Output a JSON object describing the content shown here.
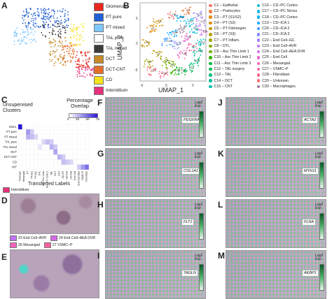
{
  "panel_labels": [
    "A",
    "B",
    "C",
    "D",
    "E",
    "F",
    "G",
    "H",
    "I",
    "J",
    "K",
    "L",
    "M"
  ],
  "panelA": {
    "legend": [
      {
        "label": "Glomerulus",
        "color": "#e8281e"
      },
      {
        "label": "PT pure",
        "color": "#1f5fd6"
      },
      {
        "label": "PT mixed",
        "color": "#7fc7ff"
      },
      {
        "label": "TAL pure",
        "color": "#ffffff"
      },
      {
        "label": "TAL mixed",
        "color": "#3a3a3a"
      },
      {
        "label": "DCT",
        "color": "#c58a2a"
      },
      {
        "label": "DCT-CNT",
        "color": "#e6702a"
      },
      {
        "label": "CD",
        "color": "#f5e21b"
      },
      {
        "label": "Interstitium",
        "color": "#e6307c"
      }
    ]
  },
  "panelB": {
    "ylabel": "UMAP_2",
    "xlabel": "UMAP_1",
    "xticks": [
      "-5",
      "0",
      "5"
    ],
    "yticks": [
      "5",
      "0",
      "-5"
    ],
    "cluster_tags": [
      "C1",
      "C2",
      "C3",
      "C4",
      "C5",
      "C6",
      "C7",
      "C8",
      "C9",
      "C10",
      "C11",
      "C12",
      "C13",
      "C14",
      "C15",
      "C16",
      "C17",
      "C18",
      "C19",
      "C20",
      "C21",
      "C22",
      "C23",
      "C24",
      "C25",
      "C26",
      "C27",
      "C28",
      "C29",
      "C30"
    ],
    "clusters": [
      {
        "label": "C1 – Epithelial",
        "color": "#f8766d"
      },
      {
        "label": "C2 – Podocytes",
        "color": "#f07d3f"
      },
      {
        "label": "C3 – PT (S1/S2)",
        "color": "#e58700"
      },
      {
        "label": "C4 – PT (S2)",
        "color": "#d89000"
      },
      {
        "label": "C5 – PT Fibrinogen",
        "color": "#c99800"
      },
      {
        "label": "C6 – PT (S3)",
        "color": "#b79f00"
      },
      {
        "label": "C7 – PT Inflam.",
        "color": "#a3a500"
      },
      {
        "label": "C8 – DTL",
        "color": "#8bab00"
      },
      {
        "label": "C9 – Asc Thin Limb 1",
        "color": "#6bb100"
      },
      {
        "label": "C10 – Asc Thin Limb 2",
        "color": "#39b600"
      },
      {
        "label": "C11 – Asc Thin Limb 3",
        "color": "#00ba38"
      },
      {
        "label": "C12 – TAL surgery",
        "color": "#00bd5c"
      },
      {
        "label": "C13 – TAL",
        "color": "#00bf7d"
      },
      {
        "label": "C14 – DCT",
        "color": "#00c09a"
      },
      {
        "label": "C15 – CNT",
        "color": "#00c0b5"
      },
      {
        "label": "C16 – CD–PC Cortex",
        "color": "#00bdd0"
      },
      {
        "label": "C17 – CD–PC Stross",
        "color": "#00b8e7"
      },
      {
        "label": "C18 – CD–PC Cortex",
        "color": "#00b0f6"
      },
      {
        "label": "C19 – CD–ICA 1",
        "color": "#00a5ff"
      },
      {
        "label": "C20 – CD–ICA 2",
        "color": "#3d9bff"
      },
      {
        "label": "C21 – CD–ICA 3",
        "color": "#7c8eff"
      },
      {
        "label": "C22 – End Cell–GC",
        "color": "#a280ff"
      },
      {
        "label": "C23 – End Cell–AVR",
        "color": "#c073f7"
      },
      {
        "label": "C24 – End Cell–AEA DVR",
        "color": "#d66ae8"
      },
      {
        "label": "C25 – End Cell",
        "color": "#e764d3"
      },
      {
        "label": "C26 – Mesangial",
        "color": "#f362bb"
      },
      {
        "label": "C27 – VSMC–P",
        "color": "#fa62a1"
      },
      {
        "label": "C28 – Fibroblast",
        "color": "#ff6787"
      },
      {
        "label": "C29 – Unknown",
        "color": "#ff6c72"
      },
      {
        "label": "C30 – Macrophages",
        "color": "#9e7b9b"
      }
    ]
  },
  "panelC": {
    "title": "Unsupervised Clusters",
    "legend_title": "Percentage Overlap",
    "legend_ticks": [
      "0",
      "25",
      "50",
      "75"
    ],
    "xlabel": "Transferred Labels",
    "rows": [
      "Glom.",
      "PT pure",
      "PT mixed",
      "TAL pure",
      "TAL mixed",
      "DCT",
      "DCT CNT",
      "CD",
      "INT"
    ],
    "cols": [
      "Podocyte",
      "Mesangial",
      "PT",
      "PT(S2)",
      "PT(S3)",
      "DTL",
      "Asc Thin Limb",
      "Asc Thin Limb 2",
      "TAL",
      "DCT",
      "CNT",
      "CD-PC",
      "CD-ICA",
      "CD-ICB",
      "End Cell",
      "End Cell-AEA",
      "VSMC-P",
      "Fibroblast"
    ],
    "cells": [
      [
        0,
        0,
        90
      ],
      [
        1,
        2,
        40
      ],
      [
        1,
        3,
        20
      ],
      [
        2,
        2,
        30
      ],
      [
        2,
        3,
        25
      ],
      [
        2,
        4,
        15
      ],
      [
        3,
        6,
        15
      ],
      [
        3,
        7,
        25
      ],
      [
        3,
        8,
        20
      ],
      [
        4,
        8,
        30
      ],
      [
        4,
        9,
        20
      ],
      [
        4,
        5,
        10
      ],
      [
        5,
        9,
        35
      ],
      [
        6,
        10,
        30
      ],
      [
        6,
        11,
        20
      ],
      [
        7,
        11,
        25
      ],
      [
        7,
        12,
        20
      ],
      [
        7,
        13,
        15
      ],
      [
        8,
        15,
        20
      ],
      [
        8,
        16,
        40
      ],
      [
        8,
        17,
        55
      ]
    ],
    "tl_legend": "Interstitium"
  },
  "panelDE": {
    "legend": [
      {
        "label": "23 End Cell–AVR",
        "color": "#c073f7"
      },
      {
        "label": "24 End Cell–AEA DVR",
        "color": "#d66ae8"
      },
      {
        "label": "26 Mesangial",
        "color": "#f362bb"
      },
      {
        "label": "27 VSMC–P",
        "color": "#fa62a1"
      },
      {
        "label": "28 Fibroblast",
        "color": "#ff6787"
      }
    ]
  },
  "gene_panels": [
    {
      "panel": "F",
      "gene": "PDGFRA",
      "scale": "Log2 Exp"
    },
    {
      "panel": "G",
      "gene": "COL1A1",
      "scale": "Log2 Exp"
    },
    {
      "panel": "H",
      "gene": "FLT1",
      "scale": "Log2 Exp"
    },
    {
      "panel": "I",
      "gene": "TAGLN",
      "scale": "Log2 Exp"
    },
    {
      "panel": "J",
      "gene": "ACTA2",
      "scale": "Log2 Exp"
    },
    {
      "panel": "K",
      "gene": "MYH11",
      "scale": "Log2 Exp"
    },
    {
      "panel": "L",
      "gene": "FLNA",
      "scale": "Log2 Exp"
    },
    {
      "panel": "M",
      "gene": "AEBP1",
      "scale": "Log2 Exp"
    }
  ]
}
